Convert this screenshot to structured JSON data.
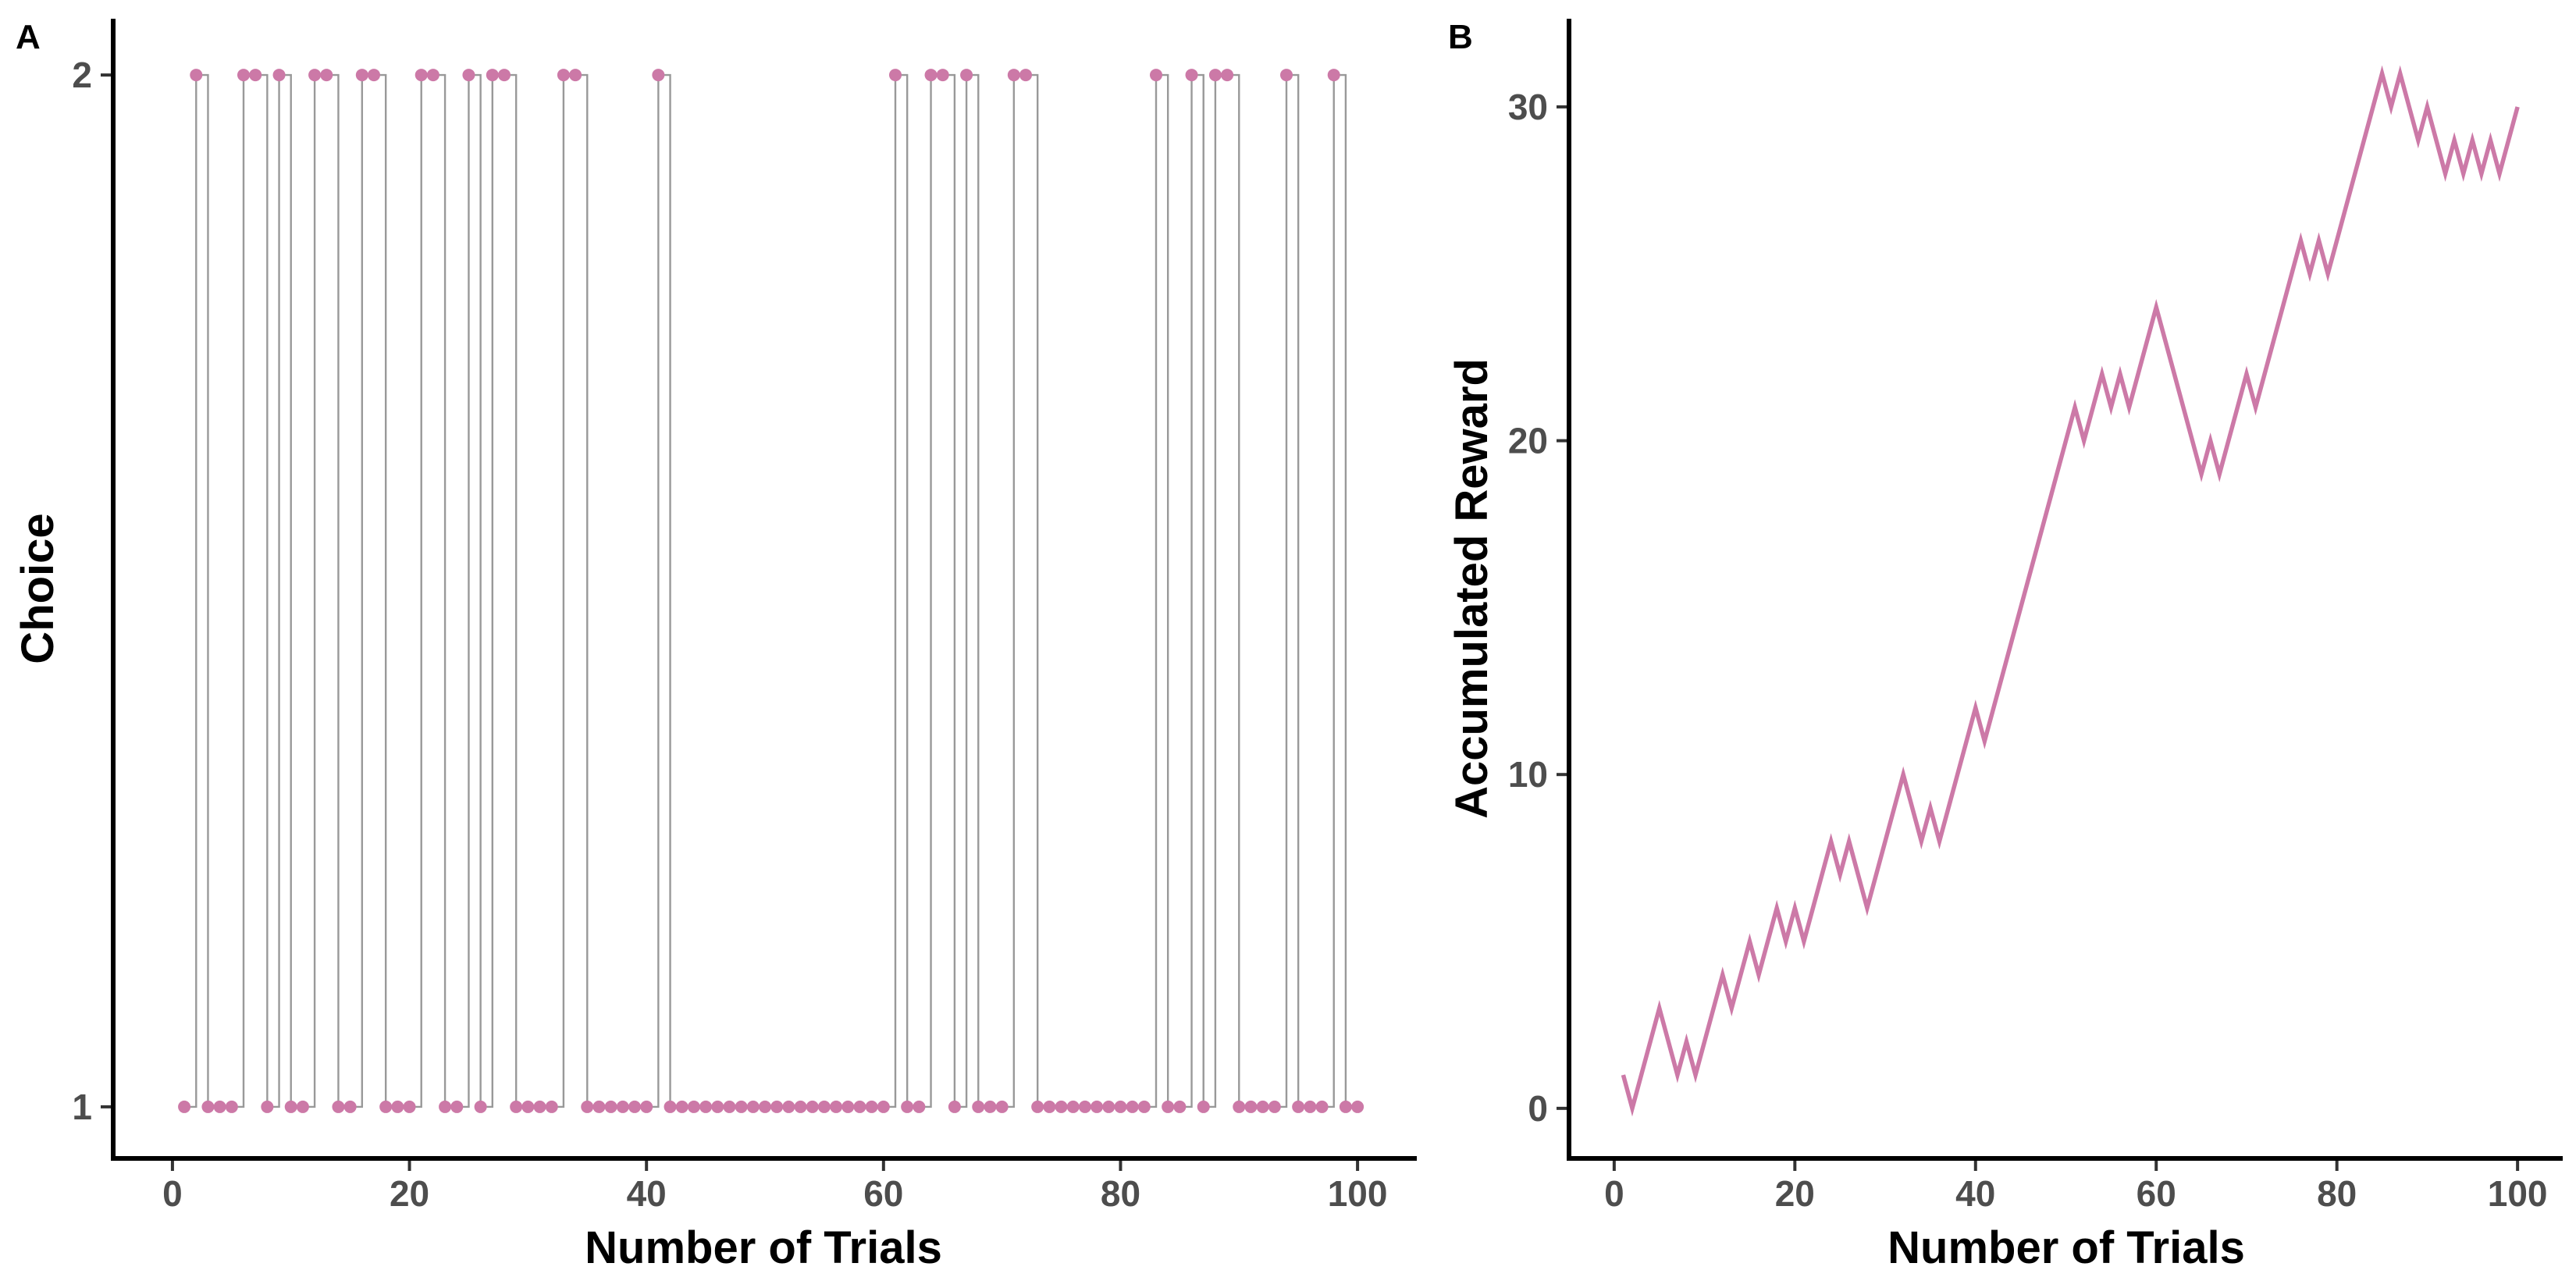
{
  "chart_data": [
    {
      "panel": "A",
      "type": "scatter",
      "xlabel": "Number of Trials",
      "ylabel": "Choice",
      "xlim": [
        -5,
        105
      ],
      "ylim": [
        0.95,
        2.05
      ],
      "x_ticks": [
        0,
        20,
        40,
        60,
        80,
        100
      ],
      "y_ticks": [
        1,
        2
      ],
      "grid": false,
      "point_color": "#CC79A7",
      "step_color": "#999999",
      "x": [
        1,
        2,
        3,
        4,
        5,
        6,
        7,
        8,
        9,
        10,
        11,
        12,
        13,
        14,
        15,
        16,
        17,
        18,
        19,
        20,
        21,
        22,
        23,
        24,
        25,
        26,
        27,
        28,
        29,
        30,
        31,
        32,
        33,
        34,
        35,
        36,
        37,
        38,
        39,
        40,
        41,
        42,
        43,
        44,
        45,
        46,
        47,
        48,
        49,
        50,
        51,
        52,
        53,
        54,
        55,
        56,
        57,
        58,
        59,
        60,
        61,
        62,
        63,
        64,
        65,
        66,
        67,
        68,
        69,
        70,
        71,
        72,
        73,
        74,
        75,
        76,
        77,
        78,
        79,
        80,
        81,
        82,
        83,
        84,
        85,
        86,
        87,
        88,
        89,
        90,
        91,
        92,
        93,
        94,
        95,
        96,
        97,
        98,
        99,
        100
      ],
      "y": [
        1,
        2,
        1,
        1,
        1,
        2,
        2,
        1,
        2,
        1,
        1,
        2,
        2,
        1,
        1,
        2,
        2,
        1,
        1,
        1,
        2,
        2,
        1,
        1,
        2,
        1,
        2,
        2,
        1,
        1,
        1,
        1,
        2,
        2,
        1,
        1,
        1,
        1,
        1,
        1,
        2,
        1,
        1,
        1,
        1,
        1,
        1,
        1,
        1,
        1,
        1,
        1,
        1,
        1,
        1,
        1,
        1,
        1,
        1,
        1,
        2,
        1,
        1,
        2,
        2,
        1,
        2,
        1,
        1,
        1,
        2,
        2,
        1,
        1,
        1,
        1,
        1,
        1,
        1,
        1,
        1,
        1,
        2,
        1,
        1,
        2,
        1,
        2,
        2,
        1,
        1,
        1,
        1,
        2,
        1,
        1,
        1,
        2,
        1,
        1
      ]
    },
    {
      "panel": "B",
      "type": "line",
      "xlabel": "Number of Trials",
      "ylabel": "Accumulated Reward",
      "xlim": [
        -5,
        105
      ],
      "ylim": [
        -1.5,
        32.5
      ],
      "x_ticks": [
        0,
        20,
        40,
        60,
        80,
        100
      ],
      "y_ticks": [
        0,
        10,
        20,
        30
      ],
      "grid": false,
      "line_color": "#CC79A7",
      "x": [
        1,
        2,
        3,
        4,
        5,
        6,
        7,
        8,
        9,
        10,
        11,
        12,
        13,
        14,
        15,
        16,
        17,
        18,
        19,
        20,
        21,
        22,
        23,
        24,
        25,
        26,
        27,
        28,
        29,
        30,
        31,
        32,
        33,
        34,
        35,
        36,
        37,
        38,
        39,
        40,
        41,
        42,
        43,
        44,
        45,
        46,
        47,
        48,
        49,
        50,
        51,
        52,
        53,
        54,
        55,
        56,
        57,
        58,
        59,
        60,
        61,
        62,
        63,
        64,
        65,
        66,
        67,
        68,
        69,
        70,
        71,
        72,
        73,
        74,
        75,
        76,
        77,
        78,
        79,
        80,
        81,
        82,
        83,
        84,
        85,
        86,
        87,
        88,
        89,
        90,
        91,
        92,
        93,
        94,
        95,
        96,
        97,
        98,
        99,
        100
      ],
      "y": [
        1,
        0,
        1,
        2,
        3,
        2,
        1,
        2,
        1,
        2,
        3,
        4,
        3,
        4,
        5,
        4,
        5,
        6,
        5,
        6,
        5,
        6,
        7,
        8,
        7,
        8,
        7,
        6,
        7,
        8,
        9,
        10,
        9,
        8,
        9,
        8,
        9,
        10,
        11,
        12,
        11,
        12,
        13,
        14,
        15,
        16,
        17,
        18,
        19,
        20,
        21,
        20,
        21,
        22,
        21,
        22,
        21,
        22,
        23,
        24,
        23,
        22,
        21,
        20,
        19,
        20,
        19,
        20,
        21,
        22,
        21,
        22,
        23,
        24,
        25,
        26,
        25,
        26,
        25,
        26,
        27,
        28,
        29,
        30,
        31,
        30,
        31,
        30,
        29,
        30,
        29,
        28,
        29,
        28,
        29,
        28,
        29,
        28,
        29,
        30
      ]
    }
  ]
}
